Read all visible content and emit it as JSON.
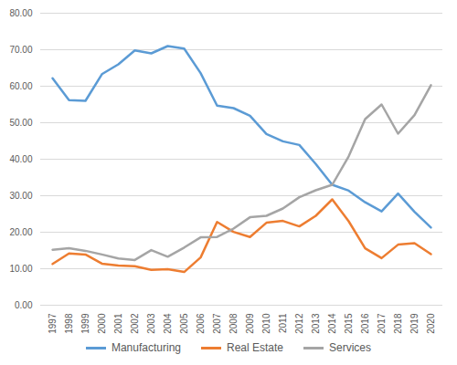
{
  "chart_data": {
    "type": "line",
    "categories": [
      "1997",
      "1998",
      "1999",
      "2000",
      "2001",
      "2002",
      "2003",
      "2004",
      "2005",
      "2006",
      "2007",
      "2008",
      "2009",
      "2010",
      "2011",
      "2012",
      "2013",
      "2014",
      "2015",
      "2016",
      "2017",
      "2018",
      "2019",
      "2020"
    ],
    "series": [
      {
        "name": "Manufacturing",
        "color": "#5B9BD5",
        "values": [
          62.2,
          56.2,
          56.0,
          63.3,
          66.0,
          69.8,
          69.0,
          71.0,
          70.3,
          63.6,
          54.7,
          54.0,
          51.9,
          46.9,
          44.9,
          43.9,
          38.7,
          33.0,
          31.4,
          28.2,
          25.7,
          30.6,
          25.6,
          21.3
        ]
      },
      {
        "name": "Real Estate",
        "color": "#ED7D31",
        "values": [
          11.3,
          14.2,
          13.9,
          11.4,
          10.9,
          10.7,
          9.7,
          9.9,
          9.1,
          13.1,
          22.8,
          20.1,
          18.7,
          22.6,
          23.1,
          21.6,
          24.5,
          29.0,
          23.0,
          15.6,
          12.9,
          16.6,
          17.0,
          14.0
        ]
      },
      {
        "name": "Services",
        "color": "#A5A5A5",
        "values": [
          15.2,
          15.6,
          14.9,
          13.9,
          12.8,
          12.4,
          15.1,
          13.3,
          15.8,
          18.6,
          18.7,
          21.0,
          24.1,
          24.5,
          26.5,
          29.6,
          31.5,
          33.0,
          40.8,
          51.0,
          55.0,
          47.0,
          52.1,
          60.3
        ]
      }
    ],
    "ylim": [
      0,
      80
    ],
    "yticks": [
      {
        "value": 0,
        "label": "0.00"
      },
      {
        "value": 10,
        "label": "10.00"
      },
      {
        "value": 20,
        "label": "20.00"
      },
      {
        "value": 30,
        "label": "30.00"
      },
      {
        "value": 40,
        "label": "40.00"
      },
      {
        "value": 50,
        "label": "50.00"
      },
      {
        "value": 60,
        "label": "60.00"
      },
      {
        "value": 70,
        "label": "70.00"
      },
      {
        "value": 80,
        "label": "80.00"
      }
    ],
    "grid": true,
    "legend": "bottom"
  }
}
